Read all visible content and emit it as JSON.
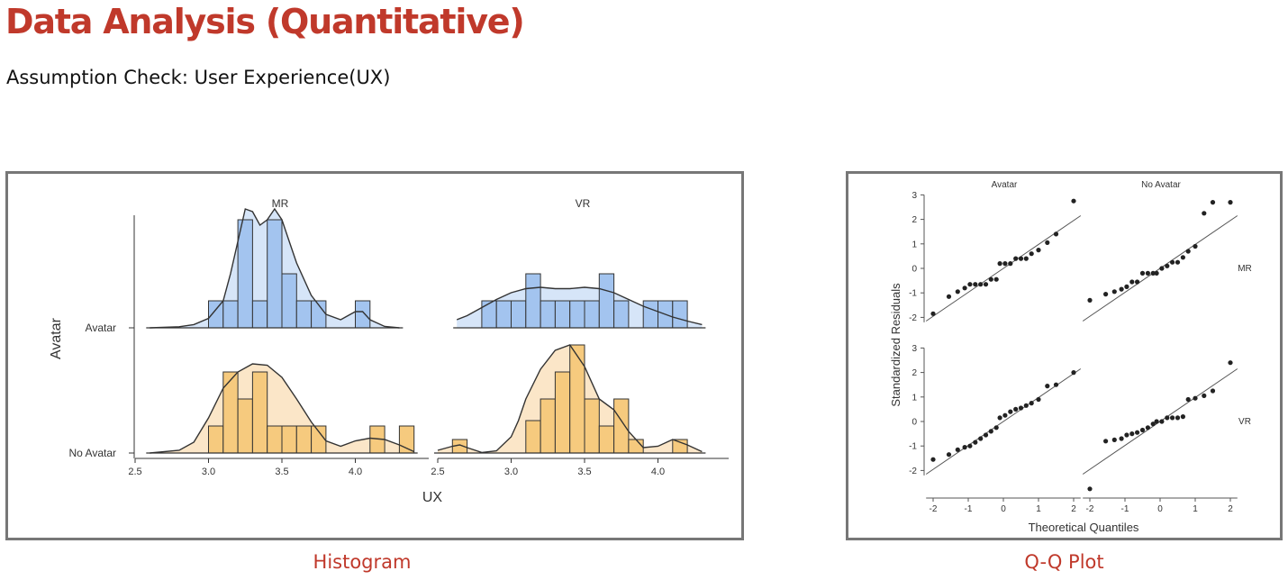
{
  "page": {
    "title": "Data Analysis (Quantitative)",
    "subtitle": "Assumption Check: User Experience(UX)",
    "hist_caption": "Histogram",
    "qq_caption": "Q-Q Plot"
  },
  "colors": {
    "title": "#c0392b",
    "blue_fill": "#a3c4ef",
    "blue_density": "#d6e5f8",
    "orange_fill": "#f6ca7e",
    "orange_density": "#fbe6c8",
    "line": "#333333"
  },
  "chart_data": [
    {
      "type": "histogram",
      "xlabel": "UX",
      "ylabel": "Avatar",
      "row_labels": [
        "Avatar",
        "No Avatar"
      ],
      "col_labels": [
        "MR",
        "VR"
      ],
      "xlim": [
        2.5,
        4.5
      ],
      "x_ticks": [
        "2.5",
        "3.0",
        "3.5",
        "4.0"
      ],
      "bin_width": 0.1,
      "panels": [
        {
          "row": "Avatar",
          "col": "MR",
          "color": "blue",
          "bin_starts": [
            3.0,
            3.1,
            3.2,
            3.3,
            3.4,
            3.5,
            3.6,
            3.7,
            3.8,
            3.9,
            4.0
          ],
          "heights": [
            1,
            1,
            4,
            1,
            4,
            2,
            1,
            1,
            0,
            0,
            1
          ],
          "density_x": [
            2.6,
            2.8,
            2.9,
            3.0,
            3.1,
            3.15,
            3.2,
            3.25,
            3.3,
            3.35,
            3.4,
            3.45,
            3.5,
            3.55,
            3.6,
            3.7,
            3.8,
            3.9,
            4.0,
            4.05,
            4.1,
            4.2,
            4.3
          ],
          "density_y": [
            0,
            0.04,
            0.12,
            0.35,
            1.0,
            2.0,
            3.2,
            4.4,
            4.3,
            3.8,
            4.0,
            4.4,
            4.0,
            3.2,
            2.4,
            1.2,
            0.5,
            0.3,
            0.6,
            0.6,
            0.3,
            0.05,
            0
          ]
        },
        {
          "row": "Avatar",
          "col": "VR",
          "color": "blue",
          "bin_starts": [
            2.8,
            2.9,
            3.0,
            3.1,
            3.2,
            3.3,
            3.4,
            3.5,
            3.6,
            3.7,
            3.8,
            3.9,
            4.0,
            4.1,
            4.2
          ],
          "heights": [
            1,
            1,
            1,
            2,
            1,
            1,
            1,
            1,
            2,
            1,
            0,
            1,
            1,
            1,
            0
          ],
          "density_x": [
            2.63,
            2.7,
            2.8,
            2.9,
            3.0,
            3.1,
            3.2,
            3.3,
            3.4,
            3.5,
            3.6,
            3.7,
            3.8,
            3.9,
            4.0,
            4.1,
            4.2,
            4.3
          ],
          "density_y": [
            0.3,
            0.45,
            0.75,
            1.05,
            1.3,
            1.45,
            1.5,
            1.45,
            1.45,
            1.5,
            1.45,
            1.3,
            1.05,
            0.8,
            0.6,
            0.4,
            0.25,
            0.12
          ]
        },
        {
          "row": "No Avatar",
          "col": "MR",
          "color": "orange",
          "bin_starts": [
            3.0,
            3.1,
            3.2,
            3.3,
            3.4,
            3.5,
            3.6,
            3.7,
            3.8,
            3.9,
            4.0,
            4.1,
            4.2,
            4.3
          ],
          "heights": [
            1,
            3,
            2,
            3,
            1,
            1,
            1,
            1,
            0,
            0,
            0,
            1,
            0,
            1
          ],
          "density_x": [
            2.6,
            2.8,
            2.9,
            3.0,
            3.1,
            3.2,
            3.3,
            3.4,
            3.5,
            3.6,
            3.7,
            3.8,
            3.9,
            4.0,
            4.1,
            4.2,
            4.3,
            4.4
          ],
          "density_y": [
            0,
            0.1,
            0.4,
            1.3,
            2.4,
            3.0,
            3.3,
            3.25,
            2.8,
            2.0,
            1.15,
            0.45,
            0.25,
            0.45,
            0.55,
            0.5,
            0.3,
            0.05
          ]
        },
        {
          "row": "No Avatar",
          "col": "VR",
          "color": "orange",
          "bin_starts": [
            2.6,
            2.7,
            2.8,
            2.9,
            3.0,
            3.1,
            3.2,
            3.3,
            3.4,
            3.5,
            3.6,
            3.7,
            3.8,
            3.9,
            4.0,
            4.1,
            4.2
          ],
          "heights": [
            0.5,
            0,
            0,
            0,
            0,
            1.2,
            2.0,
            3.0,
            4.0,
            2.0,
            1.0,
            2.0,
            0.5,
            0,
            0,
            0.5,
            0
          ],
          "density_x": [
            2.5,
            2.6,
            2.65,
            2.7,
            2.8,
            2.9,
            3.0,
            3.05,
            3.1,
            3.2,
            3.3,
            3.4,
            3.5,
            3.6,
            3.7,
            3.8,
            3.9,
            4.0,
            4.1,
            4.2,
            4.3
          ],
          "density_y": [
            0.1,
            0.25,
            0.3,
            0.2,
            0.02,
            0.08,
            0.6,
            1.2,
            2.0,
            3.1,
            3.8,
            4.0,
            3.2,
            2.0,
            1.6,
            0.8,
            0.2,
            0.25,
            0.5,
            0.3,
            0.05
          ]
        }
      ]
    },
    {
      "type": "scatter",
      "xlabel": "Theoretical Quantiles",
      "ylabel": "Standardized Residuals",
      "col_labels": [
        "Avatar",
        "No Avatar"
      ],
      "row_labels": [
        "MR",
        "VR"
      ],
      "xlim": [
        -2.2,
        2.2
      ],
      "ylim": [
        -2.3,
        3.1
      ],
      "x_ticks": [
        "-2",
        "-1",
        "0",
        "1",
        "2"
      ],
      "y_ticks": [
        "-2",
        "-1",
        "0",
        "1",
        "2",
        "3"
      ],
      "panels": [
        {
          "col": "Avatar",
          "row": "MR",
          "x": [
            -2.0,
            -1.55,
            -1.3,
            -1.1,
            -0.95,
            -0.8,
            -0.65,
            -0.5,
            -0.35,
            -0.2,
            -0.1,
            0.05,
            0.2,
            0.35,
            0.5,
            0.65,
            0.8,
            1.0,
            1.25,
            1.5,
            2.0
          ],
          "y": [
            -1.85,
            -1.15,
            -0.95,
            -0.8,
            -0.65,
            -0.65,
            -0.65,
            -0.65,
            -0.45,
            -0.45,
            0.2,
            0.2,
            0.2,
            0.4,
            0.4,
            0.4,
            0.6,
            0.75,
            1.05,
            1.4,
            2.75
          ],
          "line": {
            "x": [
              -2.2,
              2.2
            ],
            "y": [
              -2.15,
              2.15
            ]
          }
        },
        {
          "col": "No Avatar",
          "row": "MR",
          "x": [
            -2.0,
            -1.55,
            -1.3,
            -1.1,
            -0.95,
            -0.8,
            -0.65,
            -0.5,
            -0.35,
            -0.2,
            -0.1,
            0.05,
            0.2,
            0.35,
            0.5,
            0.65,
            0.8,
            1.0,
            1.25,
            1.5,
            2.0
          ],
          "y": [
            -1.3,
            -1.05,
            -0.95,
            -0.85,
            -0.75,
            -0.55,
            -0.55,
            -0.2,
            -0.2,
            -0.2,
            -0.2,
            0.0,
            0.1,
            0.25,
            0.25,
            0.45,
            0.7,
            0.9,
            2.25,
            2.7,
            2.7
          ],
          "line": {
            "x": [
              -2.2,
              2.2
            ],
            "y": [
              -2.15,
              2.15
            ]
          }
        },
        {
          "col": "Avatar",
          "row": "VR",
          "x": [
            -2.0,
            -1.55,
            -1.3,
            -1.1,
            -0.95,
            -0.8,
            -0.65,
            -0.5,
            -0.35,
            -0.2,
            -0.1,
            0.05,
            0.2,
            0.35,
            0.5,
            0.65,
            0.8,
            1.0,
            1.25,
            1.5,
            2.0
          ],
          "y": [
            -1.55,
            -1.35,
            -1.15,
            -1.05,
            -1.0,
            -0.85,
            -0.7,
            -0.55,
            -0.4,
            -0.25,
            0.15,
            0.25,
            0.4,
            0.5,
            0.55,
            0.65,
            0.75,
            0.9,
            1.45,
            1.5,
            2.0
          ],
          "line": {
            "x": [
              -2.2,
              2.2
            ],
            "y": [
              -2.15,
              2.15
            ]
          }
        },
        {
          "col": "No Avatar",
          "row": "VR",
          "x": [
            -2.0,
            -1.55,
            -1.3,
            -1.1,
            -0.95,
            -0.8,
            -0.65,
            -0.5,
            -0.35,
            -0.2,
            -0.1,
            0.05,
            0.2,
            0.35,
            0.5,
            0.65,
            0.8,
            1.0,
            1.25,
            1.5,
            2.0
          ],
          "y": [
            -2.75,
            -0.8,
            -0.75,
            -0.7,
            -0.55,
            -0.5,
            -0.45,
            -0.35,
            -0.25,
            -0.1,
            0.0,
            0.0,
            0.15,
            0.15,
            0.15,
            0.2,
            0.9,
            0.95,
            1.05,
            1.25,
            2.4
          ],
          "line": {
            "x": [
              -2.2,
              2.2
            ],
            "y": [
              -2.15,
              2.15
            ]
          }
        }
      ]
    }
  ]
}
